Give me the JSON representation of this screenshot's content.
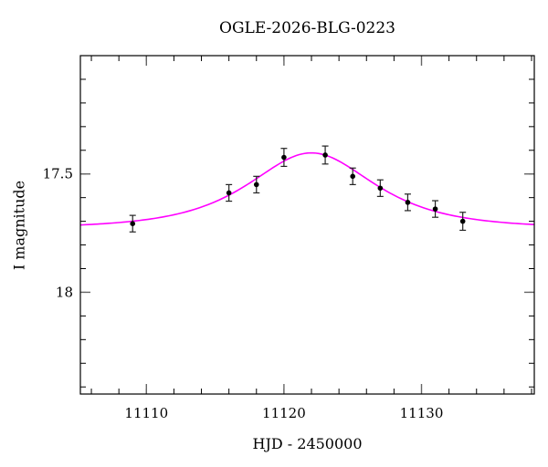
{
  "figure": {
    "title": "OGLE-2026-BLG-0223",
    "xlabel": "HJD - 2450000",
    "ylabel": "I magnitude"
  },
  "chart_data": {
    "type": "scatter",
    "title": "OGLE-2026-BLG-0223",
    "xlabel": "HJD - 2450000",
    "ylabel": "I magnitude",
    "xlim": [
      11105.2,
      11138.2
    ],
    "ylim": [
      17.0,
      18.43
    ],
    "y_axis_inverted": true,
    "grid": false,
    "legend": false,
    "x_major_ticks": [
      {
        "value": 11110,
        "label": "11110"
      },
      {
        "value": 11120,
        "label": "11120"
      },
      {
        "value": 11130,
        "label": "11130"
      }
    ],
    "x_minor_step": 2,
    "y_major_ticks": [
      {
        "value": 17.5,
        "label": "17.5"
      },
      {
        "value": 18,
        "label": "18"
      }
    ],
    "y_minor_step": 0.1,
    "points": [
      {
        "x": 11109,
        "y": 17.71,
        "yerr": 0.035
      },
      {
        "x": 11116,
        "y": 17.58,
        "yerr": 0.035
      },
      {
        "x": 11118,
        "y": 17.545,
        "yerr": 0.035
      },
      {
        "x": 11120,
        "y": 17.43,
        "yerr": 0.038
      },
      {
        "x": 11123,
        "y": 17.42,
        "yerr": 0.038
      },
      {
        "x": 11125,
        "y": 17.51,
        "yerr": 0.035
      },
      {
        "x": 11127,
        "y": 17.56,
        "yerr": 0.035
      },
      {
        "x": 11129,
        "y": 17.62,
        "yerr": 0.035
      },
      {
        "x": 11131,
        "y": 17.648,
        "yerr": 0.035
      },
      {
        "x": 11133,
        "y": 17.7,
        "yerr": 0.038
      }
    ],
    "model_curve": {
      "type": "paczynski-microlensing",
      "t0": 11122,
      "tE": 5.5,
      "u0": 1.0,
      "baseline_mag": 17.73
    },
    "colors": {
      "curve": "#ff00ff",
      "points": "#000000",
      "errorbars": "#222222",
      "axis": "#000000",
      "major_tick": "#666666",
      "background": "#ffffff"
    }
  }
}
